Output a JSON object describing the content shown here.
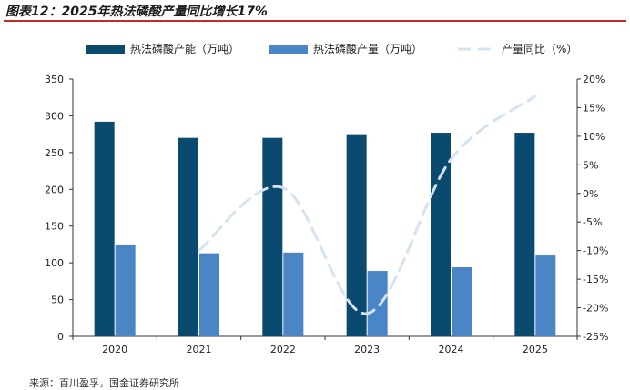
{
  "figure": {
    "title": "图表12：2025年热法磷酸产量同比增长17%",
    "source": "来源：百川盈孚，国金证券研究所"
  },
  "colors": {
    "capacity": "#0b4a6f",
    "output": "#4a86c5",
    "yoy": "#d5e3f1",
    "axis": "#333333",
    "title_rule": "#c22a2a"
  },
  "chart_data": {
    "type": "bar",
    "categories": [
      "2020",
      "2021",
      "2022",
      "2023",
      "2024",
      "2025"
    ],
    "series": [
      {
        "name": "热法磷酸产能（万吨）",
        "type": "bar",
        "axis": "left",
        "values": [
          292,
          270,
          270,
          275,
          277,
          277
        ]
      },
      {
        "name": "热法磷酸产量（万吨）",
        "type": "bar",
        "axis": "left",
        "values": [
          125,
          113,
          114,
          89,
          94,
          110
        ]
      },
      {
        "name": "产量同比（%）",
        "type": "line",
        "style": "dashed-smooth",
        "axis": "right",
        "values": [
          null,
          -10,
          1,
          -21,
          6,
          17
        ]
      }
    ],
    "ylim_left": [
      0,
      350
    ],
    "yticks_left": [
      "0",
      "50",
      "100",
      "150",
      "200",
      "250",
      "300",
      "350"
    ],
    "ylim_right": [
      -25,
      20
    ],
    "yticks_right": [
      "-25%",
      "-20%",
      "-15%",
      "-10%",
      "-5%",
      "0%",
      "5%",
      "10%",
      "15%",
      "20%"
    ],
    "legend_position": "top",
    "grid": false
  }
}
